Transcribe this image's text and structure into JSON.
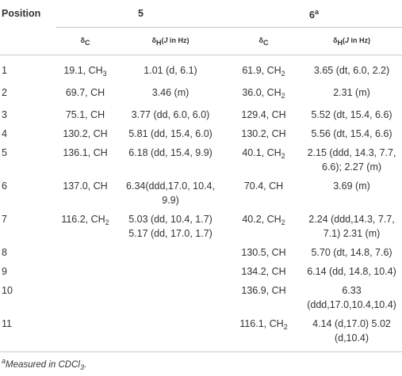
{
  "header": {
    "position": "Position",
    "groups": [
      [
        "5"
      ],
      [
        "6",
        {
          "text": "a",
          "style": "sup"
        }
      ]
    ],
    "sub_headers": [
      [
        "δ",
        {
          "text": "C",
          "style": "sub"
        }
      ],
      [
        "δ",
        {
          "text": "H",
          "style": "sub"
        },
        "(",
        {
          "text": "J",
          "style": "i"
        },
        " in Hz)"
      ],
      [
        "δ",
        {
          "text": "C",
          "style": "sub"
        }
      ],
      [
        "δ",
        {
          "text": "H",
          "style": "sub"
        },
        "(",
        {
          "text": "J",
          "style": "i"
        },
        " in Hz)"
      ]
    ]
  },
  "table": {
    "rows": [
      [
        "1",
        [
          "19.1, CH",
          {
            "text": "3",
            "style": "sub"
          }
        ],
        "1.01 (d, 6.1)",
        [
          "61.9, CH",
          {
            "text": "2",
            "style": "sub"
          }
        ],
        "3.65 (dt, 6.0, 2.2)"
      ],
      [
        "2",
        "69.7, CH",
        "3.46 (m)",
        [
          "36.0, CH",
          {
            "text": "2",
            "style": "sub"
          }
        ],
        "2.31 (m)"
      ],
      [
        "3",
        "75.1, CH",
        "3.77 (dd, 6.0, 6.0)",
        "129.4, CH",
        "5.52 (dt, 15.4, 6.6)"
      ],
      [
        "4",
        "130.2, CH",
        "5.81 (dd, 15.4, 6.0)",
        "130.2, CH",
        "5.56 (dt, 15.4, 6.6)"
      ],
      [
        "5",
        "136.1, CH",
        "6.18 (dd, 15.4, 9.9)",
        [
          "40.1, CH",
          {
            "text": "2",
            "style": "sub"
          }
        ],
        "2.15 (ddd, 14.3, 7.7, 6.6); 2.27 (m)"
      ],
      [
        "6",
        "137.0, CH",
        "6.34(ddd,17.0, 10.4, 9.9)",
        "70.4, CH",
        "3.69 (m)"
      ],
      [
        "7",
        [
          "116.2, CH",
          {
            "text": "2",
            "style": "sub"
          }
        ],
        "5.03 (dd, 10.4, 1.7) 5.17 (dd, 17.0, 1.7)",
        [
          "40.2, CH",
          {
            "text": "2",
            "style": "sub"
          }
        ],
        "2.24 (ddd,14.3, 7.7, 7.1) 2.31 (m)"
      ],
      [
        "8",
        null,
        null,
        "130.5, CH",
        "5.70 (dt, 14.8, 7.6)"
      ],
      [
        "9",
        null,
        null,
        "134.2, CH",
        "6.14 (dd, 14.8, 10.4)"
      ],
      [
        "10",
        null,
        null,
        "136.9, CH",
        "6.33 (ddd,17.0,10.4,10.4)"
      ],
      [
        "11",
        null,
        null,
        [
          "116.1, CH",
          {
            "text": "2",
            "style": "sub"
          }
        ],
        "4.14 (d,17.0) 5.02 (d,10.4)"
      ]
    ]
  },
  "footnote": [
    {
      "text": "a",
      "style": "sup"
    },
    "Measured in CDCl",
    {
      "text": "3",
      "style": "sub"
    },
    "."
  ]
}
